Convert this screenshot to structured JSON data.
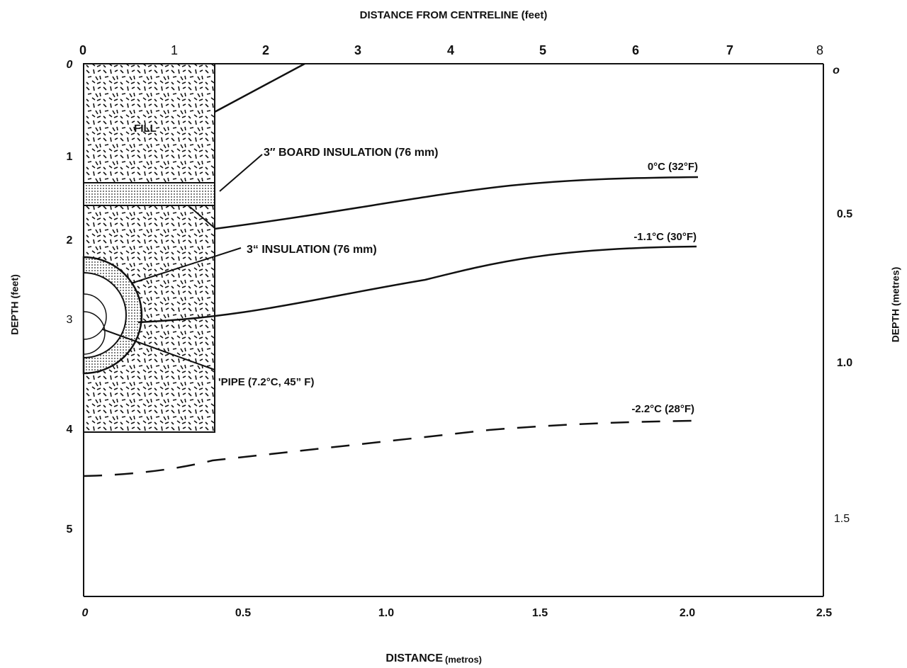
{
  "top_axis": {
    "title": "DISTANCE FROM CENTRELINE (feet)",
    "labels": [
      "0",
      "1",
      "2",
      "3",
      "4",
      "5",
      "6",
      "7",
      "8"
    ]
  },
  "left_axis": {
    "title": "DEPTH (feet)",
    "labels": [
      "0",
      "1",
      "2",
      "3",
      "4",
      "5"
    ]
  },
  "right_axis": {
    "title": "DEPTH (metres)",
    "labels": [
      "o",
      "0.5",
      "1.0",
      "1.5"
    ]
  },
  "bottom_axis": {
    "title": "DISTANCE",
    "unit": "(metros)",
    "labels": [
      "0",
      "0.5",
      "1.0",
      "1.5",
      "2.0",
      "2.5"
    ]
  },
  "annotations": {
    "fill": "FILL",
    "board_insulation": "3″ BOARD INSULATION (76 mm)",
    "pipe_insulation": "3“ INSULATION (76 mm)",
    "pipe": "'PIPE (7.2°C, 45” F)"
  },
  "isotherms": [
    "0°C (32°F)",
    "-1.1°C (30°F)",
    "-2.2°C (28°F)"
  ]
}
